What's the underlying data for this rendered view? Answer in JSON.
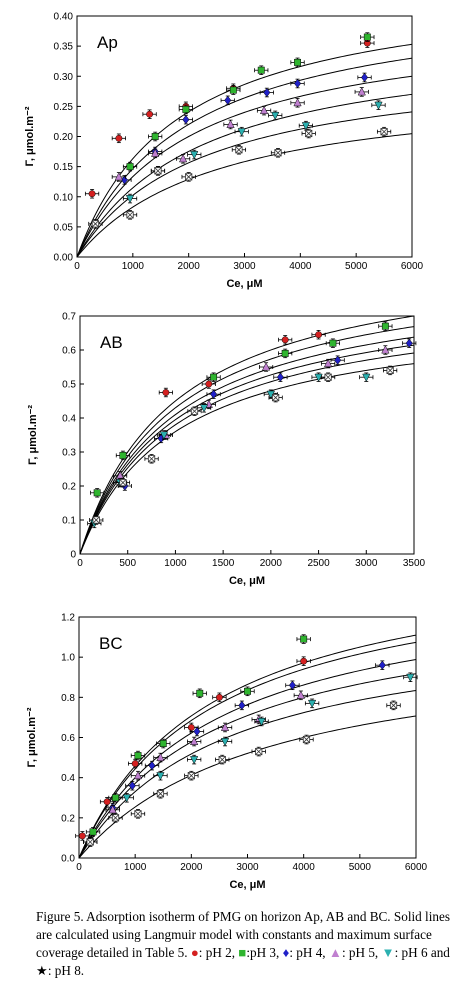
{
  "chart_data": [
    {
      "type": "scatter",
      "panel_label": "Ap",
      "xlabel": "Ce, μM",
      "ylabel": "Γ, μmol.m⁻²",
      "xlim": [
        0,
        6000
      ],
      "ylim": [
        0,
        0.4
      ],
      "xticks": [
        "0",
        "1000",
        "2000",
        "3000",
        "4000",
        "5000",
        "6000"
      ],
      "yticks": [
        "0.00",
        "0.05",
        "0.10",
        "0.15",
        "0.20",
        "0.25",
        "0.30",
        "0.35",
        "0.40"
      ],
      "curves": [
        {
          "qmax": 0.46,
          "K": 0.00055
        },
        {
          "qmax": 0.44,
          "K": 0.0005
        },
        {
          "qmax": 0.4,
          "K": 0.0005
        },
        {
          "qmax": 0.37,
          "K": 0.00045
        },
        {
          "qmax": 0.33,
          "K": 0.00045
        },
        {
          "qmax": 0.29,
          "K": 0.0004
        }
      ],
      "series": [
        {
          "name": "pH 2",
          "color": "#d42020",
          "marker": "circle",
          "x": [
            270,
            750,
            1300,
            1950,
            2800,
            5200
          ],
          "y": [
            0.105,
            0.197,
            0.237,
            0.25,
            0.28,
            0.355
          ]
        },
        {
          "name": "pH 3",
          "color": "#2fb52f",
          "marker": "square",
          "x": [
            950,
            1400,
            1950,
            2800,
            3300,
            3950,
            5200
          ],
          "y": [
            0.15,
            0.2,
            0.245,
            0.277,
            0.31,
            0.323,
            0.365
          ]
        },
        {
          "name": "pH 4",
          "color": "#2020c8",
          "marker": "diamond",
          "x": [
            850,
            1400,
            1950,
            2700,
            3400,
            3950,
            5150
          ],
          "y": [
            0.128,
            0.175,
            0.228,
            0.26,
            0.273,
            0.288,
            0.298
          ]
        },
        {
          "name": "pH 5",
          "color": "#c080d0",
          "marker": "triangle",
          "x": [
            750,
            1400,
            1900,
            2750,
            3350,
            3950,
            5100
          ],
          "y": [
            0.133,
            0.172,
            0.163,
            0.22,
            0.243,
            0.256,
            0.274
          ]
        },
        {
          "name": "pH 6",
          "color": "#2bb0b0",
          "marker": "triangle-down",
          "x": [
            950,
            1450,
            2100,
            2950,
            3550,
            4100,
            5400
          ],
          "y": [
            0.097,
            0.143,
            0.17,
            0.208,
            0.235,
            0.218,
            0.252
          ]
        },
        {
          "name": "pH 8",
          "color": "#333333",
          "marker": "cross-square",
          "x": [
            330,
            950,
            1450,
            2000,
            2900,
            3600,
            4150,
            5500
          ],
          "y": [
            0.055,
            0.07,
            0.143,
            0.133,
            0.178,
            0.173,
            0.205,
            0.208
          ]
        }
      ]
    },
    {
      "type": "scatter",
      "panel_label": "AB",
      "xlabel": "Ce, μM",
      "ylabel": "Γ, μmol.m⁻²",
      "xlim": [
        0,
        3500
      ],
      "ylim": [
        0,
        0.7
      ],
      "xticks": [
        "0",
        "500",
        "1000",
        "1500",
        "2000",
        "2500",
        "3000",
        "3500"
      ],
      "yticks": [
        "0",
        "0.1",
        "0.2",
        "0.3",
        "0.4",
        "0.5",
        "0.6",
        "0.7"
      ],
      "curves": [
        {
          "qmax": 0.9,
          "K": 0.001
        },
        {
          "qmax": 0.86,
          "K": 0.001
        },
        {
          "qmax": 0.82,
          "K": 0.001
        },
        {
          "qmax": 0.79,
          "K": 0.001
        },
        {
          "qmax": 0.76,
          "K": 0.001
        },
        {
          "qmax": 0.72,
          "K": 0.001
        }
      ],
      "series": [
        {
          "name": "pH 2",
          "color": "#d42020",
          "marker": "circle",
          "x": [
            900,
            1350,
            2150,
            2500
          ],
          "y": [
            0.475,
            0.5,
            0.63,
            0.645
          ]
        },
        {
          "name": "pH 3",
          "color": "#2fb52f",
          "marker": "square",
          "x": [
            180,
            450,
            1400,
            2150,
            2650,
            3200
          ],
          "y": [
            0.18,
            0.29,
            0.52,
            0.59,
            0.62,
            0.67
          ]
        },
        {
          "name": "pH 4",
          "color": "#2020c8",
          "marker": "diamond",
          "x": [
            470,
            850,
            1400,
            2100,
            2700,
            3450
          ],
          "y": [
            0.2,
            0.34,
            0.47,
            0.52,
            0.57,
            0.62
          ]
        },
        {
          "name": "pH 5",
          "color": "#c080d0",
          "marker": "triangle",
          "x": [
            420,
            900,
            1350,
            1950,
            2600,
            3200
          ],
          "y": [
            0.23,
            0.35,
            0.44,
            0.55,
            0.56,
            0.6
          ]
        },
        {
          "name": "pH 6",
          "color": "#2bb0b0",
          "marker": "triangle-down",
          "x": [
            150,
            420,
            880,
            1300,
            2000,
            2500,
            3000
          ],
          "y": [
            0.09,
            0.21,
            0.35,
            0.43,
            0.47,
            0.52,
            0.52
          ]
        },
        {
          "name": "pH 8",
          "color": "#333333",
          "marker": "cross-square",
          "x": [
            170,
            450,
            750,
            1200,
            2050,
            2600,
            3250
          ],
          "y": [
            0.1,
            0.21,
            0.28,
            0.42,
            0.46,
            0.52,
            0.54
          ]
        }
      ]
    },
    {
      "type": "scatter",
      "panel_label": "BC",
      "xlabel": "Ce, μM",
      "ylabel": "Γ, μmol.m⁻²",
      "xlim": [
        0,
        6000
      ],
      "ylim": [
        0,
        1.2
      ],
      "xticks": [
        "0",
        "1000",
        "2000",
        "3000",
        "4000",
        "5000",
        "6000"
      ],
      "yticks": [
        "0.0",
        "0.2",
        "0.4",
        "0.6",
        "0.8",
        "1.0",
        "1.2"
      ],
      "curves": [
        {
          "qmax": 1.55,
          "K": 0.00042
        },
        {
          "qmax": 1.5,
          "K": 0.00042
        },
        {
          "qmax": 1.4,
          "K": 0.0004
        },
        {
          "qmax": 1.3,
          "K": 0.0004
        },
        {
          "qmax": 1.2,
          "K": 0.00038
        },
        {
          "qmax": 1.1,
          "K": 0.0003
        }
      ],
      "series": [
        {
          "name": "pH 2",
          "color": "#d42020",
          "marker": "circle",
          "x": [
            60,
            500,
            1000,
            2000,
            2500,
            4000
          ],
          "y": [
            0.11,
            0.28,
            0.47,
            0.65,
            0.8,
            0.98
          ]
        },
        {
          "name": "pH 3",
          "color": "#2fb52f",
          "marker": "square",
          "x": [
            250,
            650,
            1050,
            1500,
            2150,
            3000,
            4000
          ],
          "y": [
            0.13,
            0.3,
            0.51,
            0.57,
            0.82,
            0.83,
            1.09
          ]
        },
        {
          "name": "pH 4",
          "color": "#2020c8",
          "marker": "diamond",
          "x": [
            600,
            950,
            1300,
            2100,
            2900,
            3800,
            5400
          ],
          "y": [
            0.25,
            0.36,
            0.46,
            0.63,
            0.76,
            0.86,
            0.96
          ]
        },
        {
          "name": "pH 5",
          "color": "#c080d0",
          "marker": "triangle",
          "x": [
            600,
            1050,
            1450,
            2050,
            2600,
            3200,
            3950
          ],
          "y": [
            0.24,
            0.41,
            0.5,
            0.58,
            0.65,
            0.69,
            0.81
          ]
        },
        {
          "name": "pH 6",
          "color": "#2bb0b0",
          "marker": "triangle-down",
          "x": [
            200,
            850,
            1450,
            2050,
            2600,
            3250,
            4150,
            5900
          ],
          "y": [
            0.08,
            0.3,
            0.41,
            0.49,
            0.58,
            0.68,
            0.77,
            0.9
          ]
        },
        {
          "name": "pH 8",
          "color": "#333333",
          "marker": "cross-square",
          "x": [
            200,
            650,
            1050,
            1450,
            2000,
            2550,
            3200,
            4050,
            5600
          ],
          "y": [
            0.08,
            0.2,
            0.22,
            0.32,
            0.41,
            0.49,
            0.53,
            0.59,
            0.76
          ]
        }
      ]
    }
  ],
  "caption": {
    "text": "Figure 5. Adsorption isotherm of PMG on horizon Ap, AB and BC. Solid lines are calculated using Langmuir model with constants and maximum surface coverage detailed in Table 5.",
    "legend": [
      {
        "symbol": "●",
        "label": ": pH 2,",
        "cls": "red"
      },
      {
        "symbol": "■",
        "label": ":pH 3,",
        "cls": "green"
      },
      {
        "symbol": "♦",
        "label": ": pH 4,",
        "cls": "blue"
      },
      {
        "symbol": "▲",
        "label": ": pH 5,",
        "cls": "pink"
      },
      {
        "symbol": "▼",
        "label": ": pH 6 and",
        "cls": "cyan"
      },
      {
        "symbol": "★",
        "label": ": pH 8.",
        "cls": ""
      }
    ]
  }
}
